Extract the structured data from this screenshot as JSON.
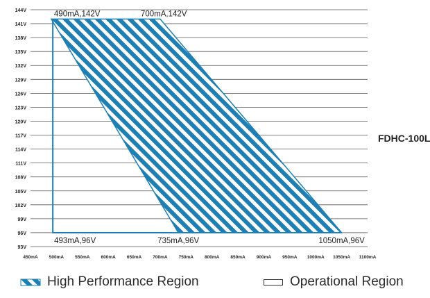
{
  "model_label": "FDHC-100L",
  "legend": {
    "high_performance": "High Performance Region",
    "operational": "Operational Region"
  },
  "colors": {
    "hatch_line": "#1f7fb2",
    "hatch_fill": "#ffffff",
    "outline": "#1f7fb2",
    "grid": "#555555",
    "text": "#222222"
  },
  "chart_data": {
    "type": "area",
    "xlabel": "",
    "ylabel": "",
    "x_unit": "mA",
    "y_unit": "V",
    "xlim": [
      450,
      1100
    ],
    "ylim": [
      93,
      144
    ],
    "x_ticks": [
      450,
      500,
      550,
      600,
      650,
      700,
      750,
      800,
      850,
      900,
      950,
      1000,
      1050,
      1100
    ],
    "x_tick_labels": [
      "450mA",
      "500mA",
      "550mA",
      "600mA",
      "650mA",
      "700mA",
      "750mA",
      "800mA",
      "850mA",
      "900mA",
      "950mA",
      "1000mA",
      "1050mA",
      "1100mA"
    ],
    "y_ticks": [
      93,
      96,
      99,
      102,
      105,
      108,
      111,
      114,
      117,
      120,
      123,
      126,
      129,
      132,
      135,
      138,
      141,
      144
    ],
    "y_tick_labels": [
      "93V",
      "96V",
      "99V",
      "102V",
      "105V",
      "108V",
      "111V",
      "114V",
      "117V",
      "120V",
      "123V",
      "126V",
      "129V",
      "132V",
      "135V",
      "138V",
      "141V",
      "144V"
    ],
    "grid": true,
    "legend_position": "bottom",
    "series": [
      {
        "name": "High Performance Region",
        "style": "hatched",
        "points": [
          {
            "x": 490,
            "y": 142
          },
          {
            "x": 700,
            "y": 142
          },
          {
            "x": 1050,
            "y": 96
          },
          {
            "x": 735,
            "y": 96
          }
        ]
      },
      {
        "name": "Operational Region",
        "style": "outline",
        "points": [
          {
            "x": 493,
            "y": 142
          },
          {
            "x": 493,
            "y": 96
          },
          {
            "x": 1050,
            "y": 96
          }
        ]
      }
    ],
    "annotations": [
      {
        "text": "490mA,142V",
        "x": 490,
        "y": 142,
        "anchor": "above-right"
      },
      {
        "text": "700mA,142V",
        "x": 700,
        "y": 142,
        "anchor": "above-left"
      },
      {
        "text": "493mA,96V",
        "x": 493,
        "y": 96,
        "anchor": "below-right"
      },
      {
        "text": "735mA,96V",
        "x": 735,
        "y": 96,
        "anchor": "below-left"
      },
      {
        "text": "1050mA,96V",
        "x": 1050,
        "y": 96,
        "anchor": "below-center"
      }
    ]
  }
}
